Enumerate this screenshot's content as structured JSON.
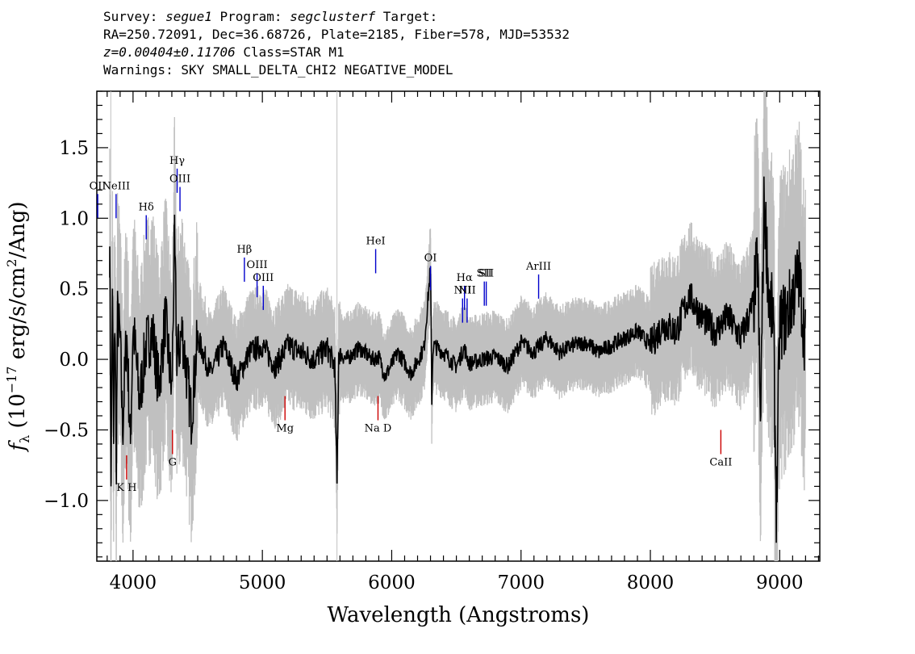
{
  "header": {
    "line1": {
      "survey_label": "Survey: ",
      "survey": "segue1",
      "program_label": " Program: ",
      "program": "segclusterf",
      "target_label": " Target:"
    },
    "line2": "RA=250.72091, Dec=36.68726, Plate=2185, Fiber=578, MJD=53532",
    "line3": {
      "z": "z=0.00404±0.11706",
      "class": " Class=STAR M1"
    },
    "line4": "Warnings: SKY SMALL_DELTA_CHI2 NEGATIVE_MODEL"
  },
  "colors": {
    "flux": "#000000",
    "error": "#c0c0c0",
    "emission": "#0000cc",
    "absorption": "#cc0000",
    "sky": "#000000"
  },
  "chart_data": {
    "type": "line",
    "title": "",
    "xlabel": "Wavelength (Angstroms)",
    "ylabel": "f_λ (10^-17 erg/s/cm^2/Ang)",
    "xlim": [
      3720,
      9310
    ],
    "ylim": [
      -1.43,
      1.9
    ],
    "xticks": [
      4000,
      5000,
      6000,
      7000,
      8000,
      9000
    ],
    "xtick_labels": [
      "4000",
      "5000",
      "6000",
      "7000",
      "8000",
      "9000"
    ],
    "yticks": [
      -1.0,
      -0.5,
      0.0,
      0.5,
      1.0,
      1.5
    ],
    "ytick_labels": [
      "−1.0",
      "−0.5",
      "0.0",
      "0.5",
      "1.0",
      "1.5"
    ],
    "grid": false,
    "series": [
      {
        "role": "flux",
        "x": [
          3820,
          3830,
          3840,
          3850,
          3860,
          3870,
          3880,
          3900,
          3920,
          3950,
          3980,
          4000,
          4050,
          4100,
          4150,
          4200,
          4250,
          4300,
          4320,
          4340,
          4380,
          4450,
          4500,
          4600,
          4700,
          4800,
          4900,
          5000,
          5100,
          5200,
          5300,
          5400,
          5500,
          5560,
          5577,
          5590,
          5650,
          5750,
          5850,
          5900,
          5950,
          6050,
          6150,
          6250,
          6300,
          6310,
          6320,
          6400,
          6500,
          6560,
          6600,
          6700,
          6800,
          6900,
          7000,
          7100,
          7200,
          7300,
          7400,
          7500,
          7600,
          7700,
          7800,
          7900,
          8000,
          8100,
          8200,
          8300,
          8400,
          8500,
          8600,
          8700,
          8800,
          8830,
          8850,
          8880,
          8920,
          8950,
          8975,
          9000,
          9050,
          9100,
          9150,
          9200
        ],
        "y": [
          0.8,
          -0.9,
          0.5,
          -0.6,
          0.4,
          -0.8,
          0.3,
          0.15,
          -0.5,
          0.2,
          -0.6,
          0.25,
          -0.3,
          0.1,
          0.2,
          -0.2,
          0.3,
          -0.25,
          0.85,
          0.0,
          0.2,
          -0.4,
          0.15,
          -0.1,
          0.1,
          -0.15,
          0.05,
          0.1,
          -0.05,
          0.1,
          0.05,
          0.0,
          0.08,
          -0.05,
          -0.88,
          0.05,
          0.0,
          0.08,
          0.0,
          0.02,
          -0.12,
          0.05,
          -0.1,
          0.08,
          0.65,
          -0.28,
          0.1,
          0.05,
          -0.05,
          0.08,
          -0.03,
          0.0,
          0.02,
          -0.05,
          0.12,
          0.05,
          0.15,
          0.05,
          0.1,
          0.12,
          0.05,
          0.1,
          0.15,
          0.2,
          0.1,
          0.25,
          0.2,
          0.45,
          0.3,
          0.2,
          0.3,
          0.15,
          0.4,
          0.75,
          -0.5,
          1.15,
          0.4,
          0.3,
          -1.08,
          0.25,
          0.3,
          0.45,
          0.6,
          0.1
        ]
      }
    ],
    "sky_line_x": [
      3828,
      5577
    ],
    "spectral_lines": [
      {
        "label": "OII",
        "x": 3727,
        "y": 1.0,
        "kind": "emission"
      },
      {
        "label": "NeIII",
        "x": 3869,
        "y": 1.0,
        "kind": "emission"
      },
      {
        "label": "Hδ",
        "x": 4102,
        "y": 0.85,
        "kind": "emission"
      },
      {
        "label": "Hγ",
        "x": 4341,
        "y": 1.18,
        "kind": "emission"
      },
      {
        "label": "OIII",
        "x": 4363,
        "y": 1.05,
        "kind": "emission"
      },
      {
        "label": "Hβ",
        "x": 4861,
        "y": 0.55,
        "kind": "emission"
      },
      {
        "label": "OIII",
        "x": 4959,
        "y": 0.44,
        "kind": "emission"
      },
      {
        "label": "OIII",
        "x": 5007,
        "y": 0.35,
        "kind": "emission"
      },
      {
        "label": "HeI",
        "x": 5876,
        "y": 0.61,
        "kind": "emission"
      },
      {
        "label": "OI",
        "x": 6300,
        "y": 0.49,
        "kind": "emission"
      },
      {
        "label": "NII",
        "x": 6548,
        "y": 0.26,
        "kind": "emission"
      },
      {
        "label": "Hα",
        "x": 6563,
        "y": 0.35,
        "kind": "emission"
      },
      {
        "label": "NII",
        "x": 6583,
        "y": 0.26,
        "kind": "emission"
      },
      {
        "label": "SII",
        "x": 6716,
        "y": 0.38,
        "kind": "emission"
      },
      {
        "label": "SII",
        "x": 6731,
        "y": 0.38,
        "kind": "emission"
      },
      {
        "label": "ArIII",
        "x": 7136,
        "y": 0.43,
        "kind": "emission"
      },
      {
        "label": "K H",
        "x": 3950,
        "y": -0.68,
        "kind": "absorption"
      },
      {
        "label": "G",
        "x": 4305,
        "y": -0.5,
        "kind": "absorption"
      },
      {
        "label": "Mg",
        "x": 5175,
        "y": -0.26,
        "kind": "absorption"
      },
      {
        "label": "Na  D",
        "x": 5894,
        "y": -0.26,
        "kind": "absorption"
      },
      {
        "label": "CaII",
        "x": 8545,
        "y": -0.5,
        "kind": "absorption"
      }
    ]
  }
}
